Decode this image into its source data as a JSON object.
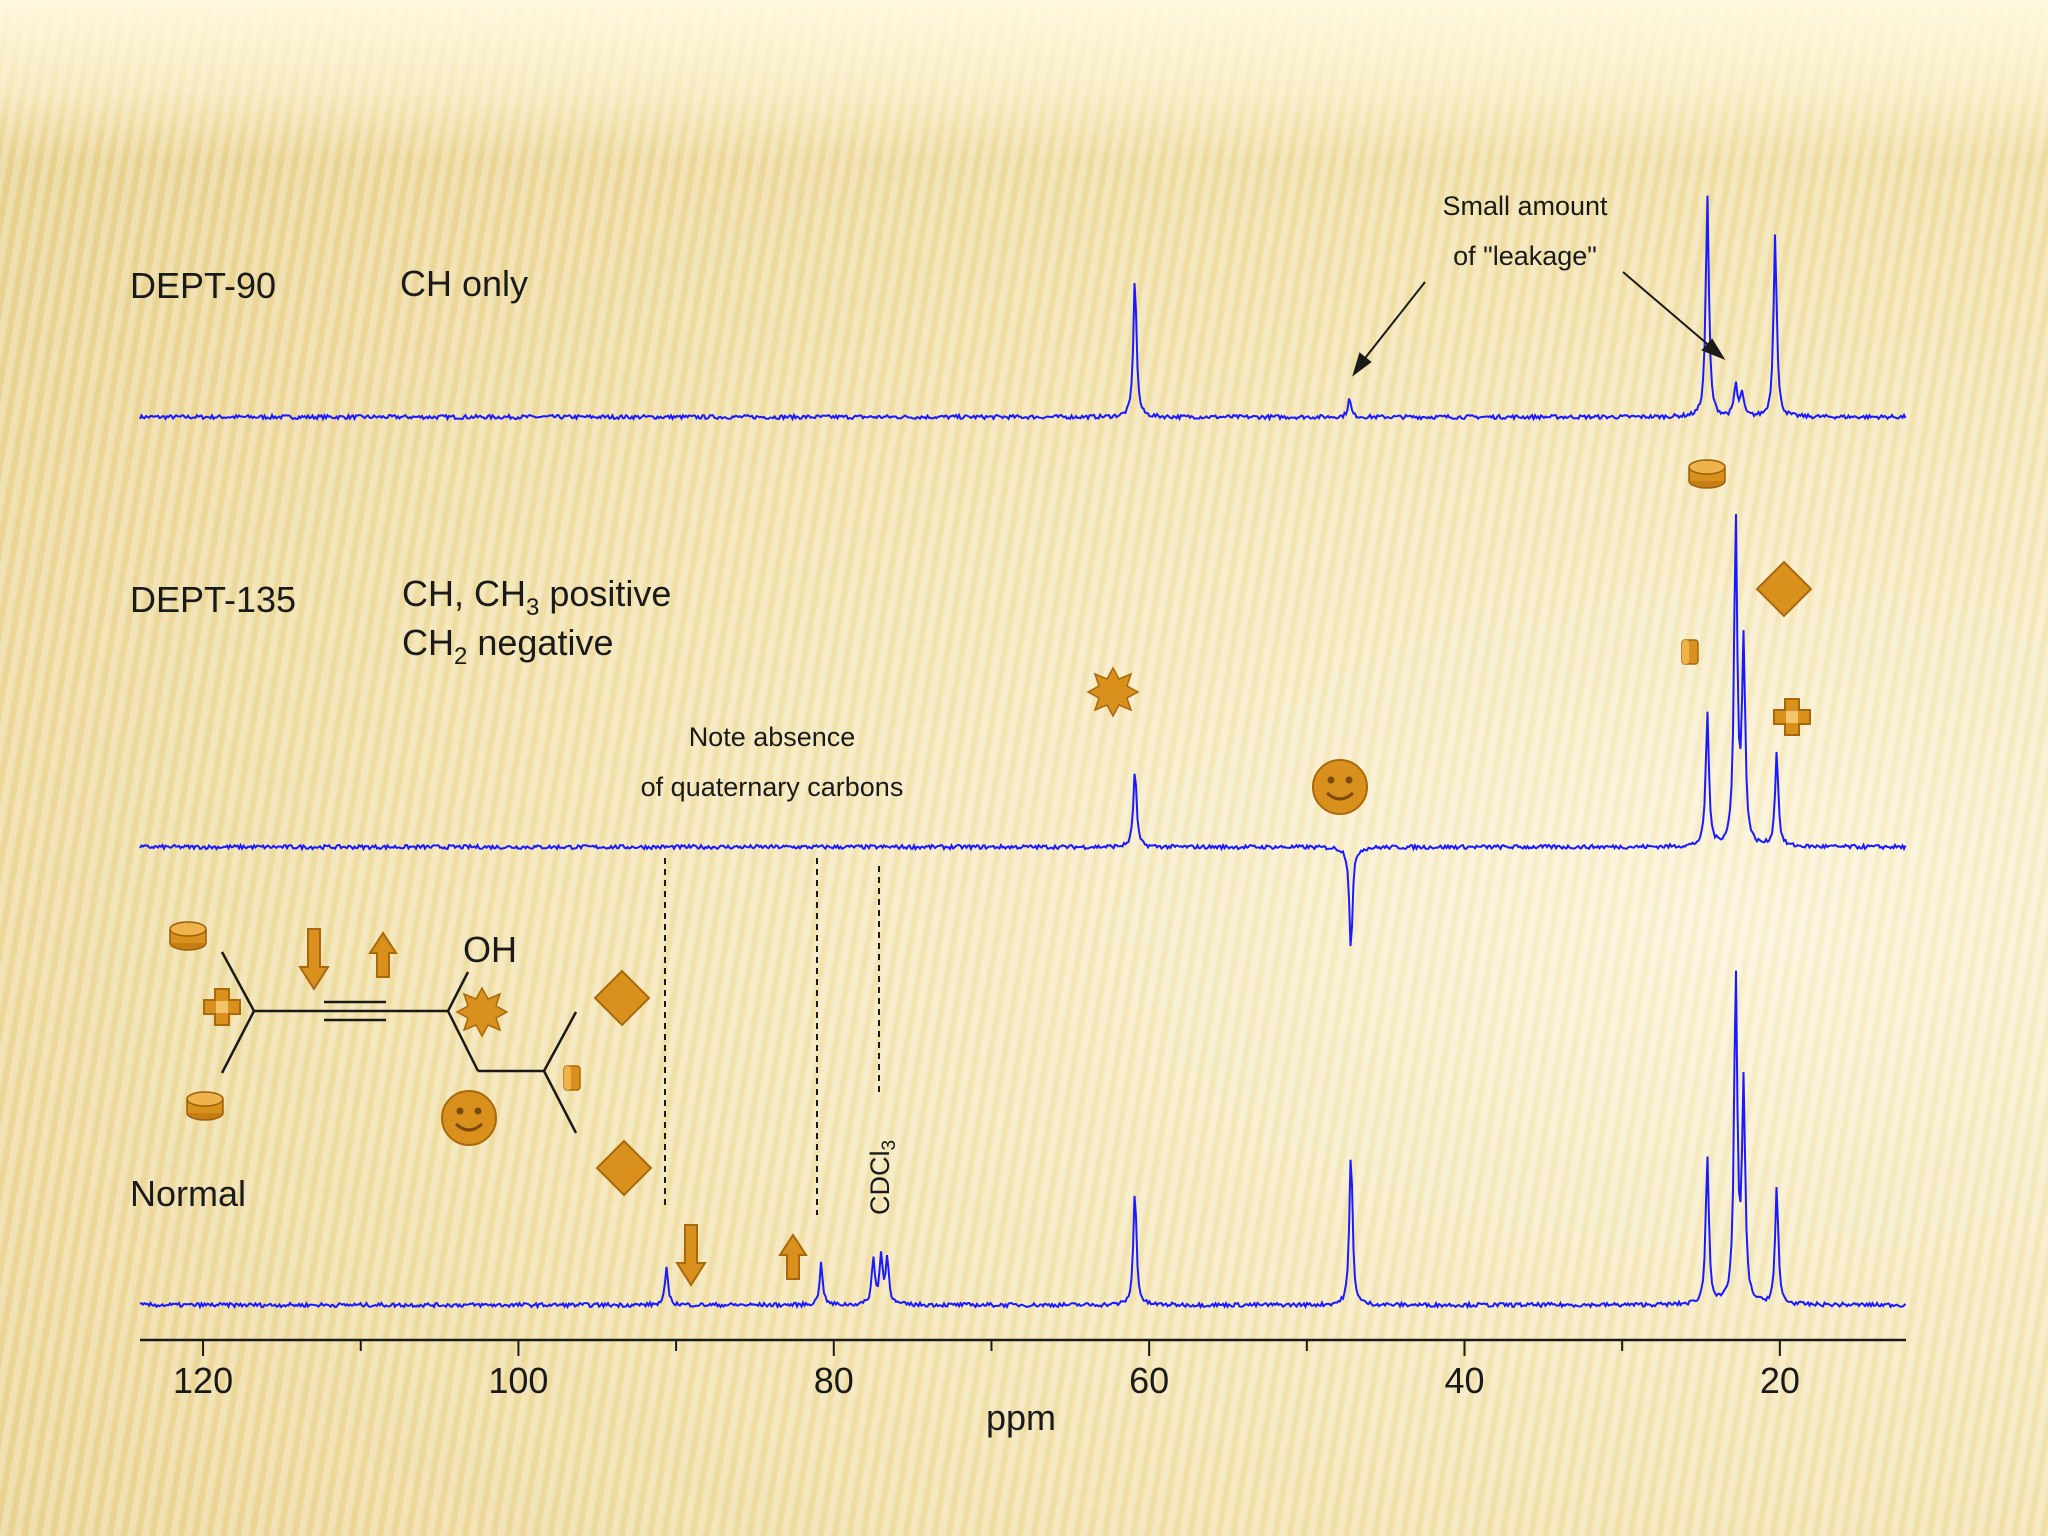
{
  "chart_data": {
    "type": "line",
    "title": "",
    "xlabel": "ppm",
    "ylabel": "",
    "xlim": [
      124,
      12
    ],
    "x_direction": "reversed",
    "xticks": [
      "120",
      "100",
      "80",
      "60",
      "40",
      "20"
    ],
    "x_tick_values": [
      120,
      100,
      80,
      60,
      40,
      20
    ],
    "series": [
      {
        "name": "DEPT-90",
        "description": "CH only",
        "color": "#1a1aff",
        "peaks": [
          {
            "ppm": 60.9,
            "intensity": 1.0
          },
          {
            "ppm": 47.3,
            "intensity": 0.13
          },
          {
            "ppm": 24.6,
            "intensity": 1.58
          },
          {
            "ppm": 22.8,
            "intensity": 0.23
          },
          {
            "ppm": 22.4,
            "intensity": 0.17
          },
          {
            "ppm": 20.3,
            "intensity": 1.32
          }
        ]
      },
      {
        "name": "DEPT-135",
        "description_line1": "CH, CH3 positive",
        "description_line2": "CH2 negative",
        "color": "#1a1aff",
        "peaks": [
          {
            "ppm": 60.9,
            "intensity": 0.56
          },
          {
            "ppm": 47.2,
            "intensity": -0.74
          },
          {
            "ppm": 24.6,
            "intensity": 0.95
          },
          {
            "ppm": 22.8,
            "intensity": 2.34
          },
          {
            "ppm": 22.3,
            "intensity": 1.42
          },
          {
            "ppm": 20.2,
            "intensity": 0.68
          }
        ]
      },
      {
        "name": "Normal",
        "color": "#1a1aff",
        "peaks": [
          {
            "ppm": 90.6,
            "intensity": 0.26
          },
          {
            "ppm": 80.8,
            "intensity": 0.3
          },
          {
            "ppm": 77.5,
            "intensity": 0.32
          },
          {
            "ppm": 77.0,
            "intensity": 0.34
          },
          {
            "ppm": 76.6,
            "intensity": 0.33
          },
          {
            "ppm": 60.9,
            "intensity": 0.82
          },
          {
            "ppm": 47.2,
            "intensity": 1.1
          },
          {
            "ppm": 24.6,
            "intensity": 1.06
          },
          {
            "ppm": 22.8,
            "intensity": 2.35
          },
          {
            "ppm": 22.3,
            "intensity": 1.52
          },
          {
            "ppm": 20.2,
            "intensity": 0.83
          }
        ]
      }
    ],
    "annotations": {
      "leakage_line1": "Small amount",
      "leakage_line2": "of \"leakage\"",
      "absence_line1": "Note absence",
      "absence_line2": "of quaternary carbons",
      "solvent": "CDCl",
      "solvent_sub": "3",
      "oh_label": "OH"
    },
    "labels": {
      "dept90_name": "DEPT-90",
      "dept90_desc": "CH only",
      "dept135_name": "DEPT-135",
      "dept135_a1": "CH, CH",
      "dept135_a_sub": "3",
      "dept135_a2": " positive",
      "dept135_b1": "CH",
      "dept135_b_sub": "2",
      "dept135_b2": " negative",
      "normal_name": "Normal"
    },
    "marker_icons": [
      "cylinder-icon",
      "diamond-icon",
      "small-cylinder-icon",
      "plus-icon",
      "starburst-icon",
      "smiley-icon",
      "down-arrow-icon",
      "up-arrow-icon"
    ],
    "colors": {
      "spectrum": "#1a1aff",
      "marker": "#d9901c",
      "marker_edge": "#a8690c",
      "axis": "#1a1a1a"
    }
  }
}
